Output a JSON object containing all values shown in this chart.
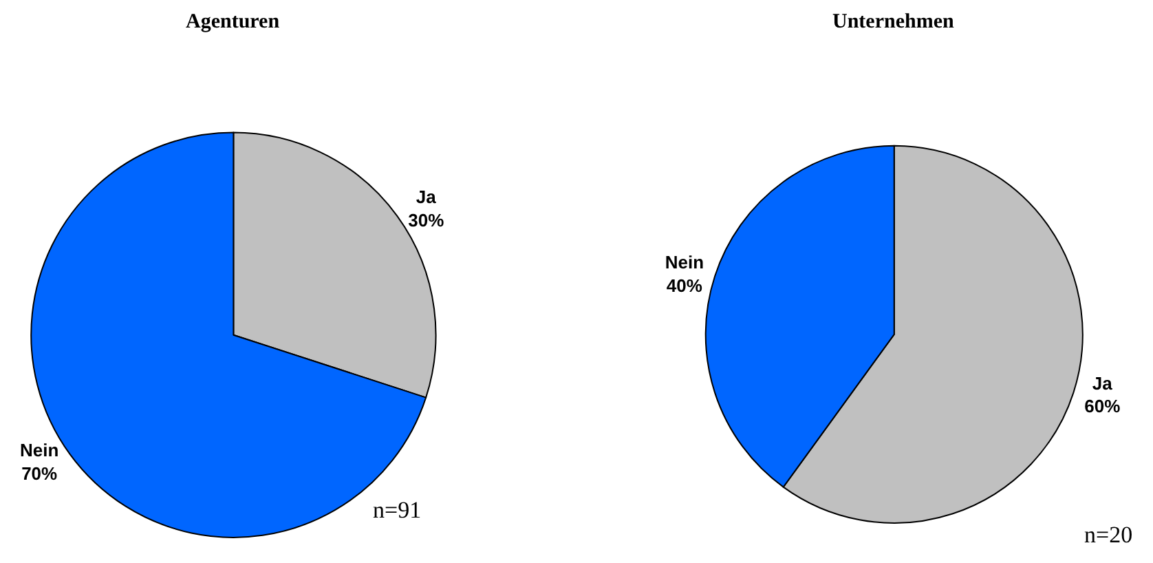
{
  "chart_data": [
    {
      "type": "pie",
      "title": "Agenturen",
      "categories": [
        "Ja",
        "Nein"
      ],
      "values": [
        30,
        70
      ],
      "value_labels": [
        "30%",
        "70%"
      ],
      "colors": [
        "#c0c0c0",
        "#0066ff"
      ],
      "annotations": [
        "n=91"
      ]
    },
    {
      "type": "pie",
      "title": "Unternehmen",
      "categories": [
        "Ja",
        "Nein"
      ],
      "values": [
        60,
        40
      ],
      "value_labels": [
        "60%",
        "40%"
      ],
      "colors": [
        "#c0c0c0",
        "#0066ff"
      ],
      "annotations": [
        "n=20"
      ]
    }
  ]
}
